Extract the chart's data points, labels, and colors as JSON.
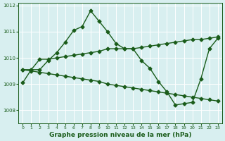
{
  "bg_color": "#d8eff0",
  "grid_color": "#ffffff",
  "line_color": "#1a5c1a",
  "ylabel_ticks": [
    1008,
    1009,
    1010,
    1011,
    1012
  ],
  "xlabel_ticks": [
    0,
    1,
    2,
    3,
    4,
    5,
    6,
    7,
    8,
    9,
    10,
    11,
    12,
    13,
    14,
    15,
    16,
    17,
    18,
    19,
    20,
    21,
    22,
    23
  ],
  "xlabel": "Graphe pression niveau de la mer (hPa)",
  "xlim": [
    -0.5,
    23.5
  ],
  "ylim": [
    1007.5,
    1012.1
  ],
  "series": [
    {
      "x": [
        0,
        1,
        2,
        3,
        4,
        5,
        6,
        7,
        8,
        9,
        10,
        11,
        12,
        13,
        14,
        15,
        16,
        17,
        18,
        19,
        20,
        21,
        22,
        23
      ],
      "y": [
        1009.05,
        1009.55,
        1009.55,
        1009.9,
        1010.2,
        1010.6,
        1011.05,
        1011.2,
        1011.8,
        1011.4,
        1011.0,
        1010.55,
        1010.35,
        1010.35,
        1009.9,
        1009.6,
        1009.1,
        1008.7,
        1008.2,
        1008.25,
        1008.3,
        1009.2,
        1010.35,
        1010.75
      ]
    },
    {
      "x": [
        0,
        1,
        2,
        3,
        4,
        5,
        6,
        7,
        8,
        9,
        10,
        11,
        12,
        13,
        14,
        15,
        16,
        17,
        18,
        19,
        20,
        21,
        22,
        23
      ],
      "y": [
        1009.55,
        1009.55,
        1009.95,
        1009.95,
        1010.0,
        1010.05,
        1010.1,
        1010.15,
        1010.2,
        1010.25,
        1010.35,
        1010.35,
        1010.35,
        1010.35,
        1010.4,
        1010.45,
        1010.5,
        1010.55,
        1010.6,
        1010.65,
        1010.7,
        1010.7,
        1010.75,
        1010.8
      ]
    },
    {
      "x": [
        0,
        1,
        2,
        3,
        4,
        5,
        6,
        7,
        8,
        9,
        10,
        11,
        12,
        13,
        14,
        15,
        16,
        17,
        18,
        19,
        20,
        21,
        22,
        23
      ],
      "y": [
        1009.55,
        1009.5,
        1009.45,
        1009.4,
        1009.35,
        1009.3,
        1009.25,
        1009.2,
        1009.15,
        1009.1,
        1009.0,
        1008.95,
        1008.9,
        1008.85,
        1008.8,
        1008.75,
        1008.7,
        1008.65,
        1008.6,
        1008.55,
        1008.5,
        1008.45,
        1008.4,
        1008.35
      ]
    }
  ],
  "marker": "D",
  "marker_size": 2.5,
  "linewidth": 1.0
}
